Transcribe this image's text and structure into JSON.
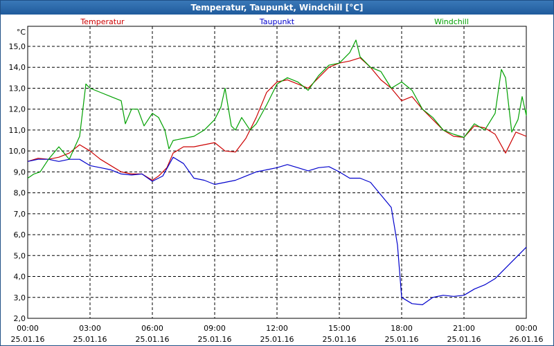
{
  "window": {
    "title": "Temperatur, Taupunkt, Windchill [°C]"
  },
  "chart_data": {
    "type": "line",
    "title": "Temperatur, Taupunkt, Windchill [°C]",
    "ylabel": "°C",
    "ylim": [
      2.0,
      15.5
    ],
    "y_ticks": [
      "15,0",
      "14,0",
      "13,0",
      "12,0",
      "11,0",
      "10,0",
      "9,0",
      "8,0",
      "7,0",
      "6,0",
      "5,0",
      "4,0",
      "3,0",
      "2,0"
    ],
    "x_range_hours": [
      0,
      24
    ],
    "x_ticks": [
      {
        "time": "00:00",
        "date": "25.01.16"
      },
      {
        "time": "03:00",
        "date": "25.01.16"
      },
      {
        "time": "06:00",
        "date": "25.01.16"
      },
      {
        "time": "09:00",
        "date": "25.01.16"
      },
      {
        "time": "12:00",
        "date": "25.01.16"
      },
      {
        "time": "15:00",
        "date": "25.01.16"
      },
      {
        "time": "18:00",
        "date": "25.01.16"
      },
      {
        "time": "21:00",
        "date": "25.01.16"
      },
      {
        "time": "00:00",
        "date": "26.01.16"
      }
    ],
    "grid": true,
    "legend_placement": "top",
    "series": [
      {
        "name": "Temperatur",
        "color": "#cc0000",
        "points": [
          [
            0,
            9.5
          ],
          [
            0.5,
            9.65
          ],
          [
            1,
            9.6
          ],
          [
            1.5,
            9.7
          ],
          [
            2,
            9.9
          ],
          [
            2.5,
            10.3
          ],
          [
            3,
            10.0
          ],
          [
            3.5,
            9.6
          ],
          [
            4,
            9.3
          ],
          [
            4.5,
            9.0
          ],
          [
            5,
            8.9
          ],
          [
            5.5,
            8.9
          ],
          [
            6,
            8.6
          ],
          [
            6.3,
            8.8
          ],
          [
            6.7,
            9.2
          ],
          [
            7,
            9.9
          ],
          [
            7.5,
            10.2
          ],
          [
            8,
            10.2
          ],
          [
            8.5,
            10.3
          ],
          [
            9,
            10.4
          ],
          [
            9.5,
            10.0
          ],
          [
            10,
            9.95
          ],
          [
            10.5,
            10.6
          ],
          [
            11,
            11.6
          ],
          [
            11.5,
            12.8
          ],
          [
            12,
            13.3
          ],
          [
            12.5,
            13.4
          ],
          [
            13,
            13.2
          ],
          [
            13.5,
            13.0
          ],
          [
            14,
            13.5
          ],
          [
            14.5,
            14.0
          ],
          [
            15,
            14.2
          ],
          [
            15.5,
            14.3
          ],
          [
            16,
            14.45
          ],
          [
            16.5,
            14.0
          ],
          [
            17,
            13.4
          ],
          [
            17.5,
            13.0
          ],
          [
            18,
            12.4
          ],
          [
            18.5,
            12.6
          ],
          [
            19,
            12.0
          ],
          [
            19.5,
            11.5
          ],
          [
            20,
            11.0
          ],
          [
            20.5,
            10.7
          ],
          [
            21,
            10.65
          ],
          [
            21.5,
            11.2
          ],
          [
            22,
            11.1
          ],
          [
            22.5,
            10.8
          ],
          [
            23,
            9.9
          ],
          [
            23.5,
            10.9
          ],
          [
            24,
            10.7
          ]
        ]
      },
      {
        "name": "Taupunkt",
        "color": "#0000cc",
        "points": [
          [
            0,
            9.5
          ],
          [
            0.5,
            9.6
          ],
          [
            1,
            9.6
          ],
          [
            1.5,
            9.5
          ],
          [
            2,
            9.6
          ],
          [
            2.5,
            9.6
          ],
          [
            3,
            9.3
          ],
          [
            3.5,
            9.2
          ],
          [
            4,
            9.1
          ],
          [
            4.5,
            8.9
          ],
          [
            5,
            8.85
          ],
          [
            5.5,
            8.9
          ],
          [
            6,
            8.55
          ],
          [
            6.5,
            8.8
          ],
          [
            7,
            9.7
          ],
          [
            7.5,
            9.4
          ],
          [
            8,
            8.7
          ],
          [
            8.5,
            8.6
          ],
          [
            9,
            8.4
          ],
          [
            9.5,
            8.5
          ],
          [
            10,
            8.6
          ],
          [
            10.5,
            8.8
          ],
          [
            11,
            9.0
          ],
          [
            11.5,
            9.1
          ],
          [
            12,
            9.2
          ],
          [
            12.5,
            9.35
          ],
          [
            13,
            9.2
          ],
          [
            13.5,
            9.05
          ],
          [
            14,
            9.2
          ],
          [
            14.5,
            9.25
          ],
          [
            15,
            9.0
          ],
          [
            15.5,
            8.7
          ],
          [
            16,
            8.7
          ],
          [
            16.5,
            8.5
          ],
          [
            17,
            7.9
          ],
          [
            17.5,
            7.3
          ],
          [
            17.8,
            5.5
          ],
          [
            18,
            3.0
          ],
          [
            18.5,
            2.7
          ],
          [
            19,
            2.65
          ],
          [
            19.5,
            3.0
          ],
          [
            20,
            3.1
          ],
          [
            20.5,
            3.05
          ],
          [
            21,
            3.1
          ],
          [
            21.5,
            3.4
          ],
          [
            22,
            3.6
          ],
          [
            22.5,
            3.9
          ],
          [
            23,
            4.4
          ],
          [
            23.5,
            4.9
          ],
          [
            24,
            5.4
          ]
        ]
      },
      {
        "name": "Windchill",
        "color": "#00a000",
        "points": [
          [
            0,
            8.7
          ],
          [
            0.3,
            8.9
          ],
          [
            0.6,
            9.0
          ],
          [
            1,
            9.6
          ],
          [
            1.5,
            10.2
          ],
          [
            2,
            9.6
          ],
          [
            2.5,
            10.7
          ],
          [
            2.8,
            13.2
          ],
          [
            3,
            13.0
          ],
          [
            3.5,
            12.8
          ],
          [
            4,
            12.6
          ],
          [
            4.5,
            12.4
          ],
          [
            4.7,
            11.3
          ],
          [
            5,
            12.0
          ],
          [
            5.3,
            12.0
          ],
          [
            5.6,
            11.2
          ],
          [
            6,
            11.8
          ],
          [
            6.3,
            11.6
          ],
          [
            6.6,
            11.0
          ],
          [
            6.8,
            10.1
          ],
          [
            7,
            10.5
          ],
          [
            7.5,
            10.6
          ],
          [
            8,
            10.7
          ],
          [
            8.5,
            11.0
          ],
          [
            9,
            11.5
          ],
          [
            9.3,
            12.1
          ],
          [
            9.5,
            13.0
          ],
          [
            9.8,
            11.2
          ],
          [
            10,
            11.0
          ],
          [
            10.3,
            11.6
          ],
          [
            10.7,
            11.0
          ],
          [
            11,
            11.3
          ],
          [
            11.5,
            12.2
          ],
          [
            12,
            13.2
          ],
          [
            12.5,
            13.5
          ],
          [
            13,
            13.3
          ],
          [
            13.5,
            12.9
          ],
          [
            14,
            13.6
          ],
          [
            14.5,
            14.1
          ],
          [
            15,
            14.2
          ],
          [
            15.5,
            14.7
          ],
          [
            15.8,
            15.3
          ],
          [
            16,
            14.5
          ],
          [
            16.5,
            14.0
          ],
          [
            17,
            13.8
          ],
          [
            17.5,
            13.0
          ],
          [
            18,
            13.3
          ],
          [
            18.5,
            12.9
          ],
          [
            19,
            12.0
          ],
          [
            19.5,
            11.6
          ],
          [
            20,
            11.0
          ],
          [
            20.5,
            10.8
          ],
          [
            21,
            10.65
          ],
          [
            21.5,
            11.3
          ],
          [
            22,
            11.0
          ],
          [
            22.5,
            11.8
          ],
          [
            22.8,
            13.9
          ],
          [
            23,
            13.5
          ],
          [
            23.3,
            10.9
          ],
          [
            23.6,
            11.5
          ],
          [
            23.8,
            12.6
          ],
          [
            24,
            11.7
          ],
          [
            24,
            12.0
          ]
        ]
      }
    ]
  }
}
